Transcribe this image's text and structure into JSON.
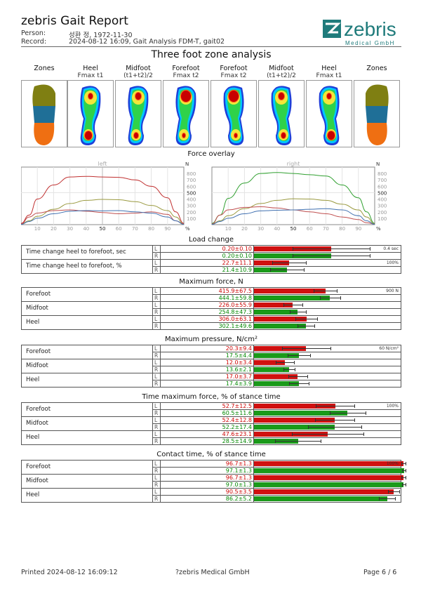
{
  "header": {
    "title": "zebris Gait Report",
    "person_label": "Person:",
    "person_value": "성환 정, 1972-11-30",
    "record_label": "Record:",
    "record_value": "2024-08-12 16:09, Gait Analysis FDM-T, gait02",
    "logo_text": "zebris",
    "logo_sub": "Medical GmbH"
  },
  "zone_analysis": {
    "title": "Three foot zone analysis",
    "columns": [
      {
        "l1": "Zones",
        "l2": ""
      },
      {
        "l1": "Heel",
        "l2": "Fmax t1"
      },
      {
        "l1": "Midfoot",
        "l2": "(t1+t2)/2"
      },
      {
        "l1": "Forefoot",
        "l2": "Fmax t2"
      },
      {
        "l1": "Forefoot",
        "l2": "Fmax t2"
      },
      {
        "l1": "Midfoot",
        "l2": "(t1+t2)/2"
      },
      {
        "l1": "Heel",
        "l2": "Fmax t1"
      },
      {
        "l1": "Zones",
        "l2": ""
      }
    ],
    "zone_colors": {
      "forefoot": "#7f7f12",
      "midfoot": "#1f6f97",
      "heel": "#ef6f12"
    }
  },
  "force_overlay": {
    "title": "Force overlay",
    "left_label": "left",
    "right_label": "right",
    "unit_n": "N",
    "unit_pct": "%",
    "x_ticks": [
      "10",
      "20",
      "30",
      "40",
      "50",
      "60",
      "70",
      "80",
      "90"
    ],
    "y_ticks": [
      "800",
      "700",
      "600",
      "500",
      "400",
      "300",
      "200",
      "100"
    ]
  },
  "chart_data": [
    {
      "type": "line",
      "title": "left",
      "x": [
        0,
        5,
        10,
        20,
        30,
        40,
        50,
        60,
        70,
        80,
        90,
        95,
        100
      ],
      "series": [
        {
          "color": "#c03030",
          "values": [
            20,
            150,
            400,
            620,
            745,
            755,
            745,
            740,
            700,
            600,
            420,
            200,
            20
          ]
        },
        {
          "color": "#9a9a40",
          "values": [
            10,
            60,
            130,
            240,
            330,
            380,
            395,
            390,
            360,
            300,
            220,
            120,
            10
          ]
        },
        {
          "color": "#c05050",
          "values": [
            10,
            120,
            180,
            220,
            230,
            210,
            190,
            170,
            180,
            200,
            160,
            60,
            10
          ]
        },
        {
          "color": "#4070b0",
          "values": [
            5,
            50,
            100,
            170,
            210,
            220,
            215,
            220,
            200,
            180,
            120,
            60,
            5
          ]
        }
      ],
      "ylim": [
        0,
        900
      ]
    },
    {
      "type": "line",
      "title": "right",
      "x": [
        0,
        5,
        10,
        20,
        30,
        40,
        50,
        60,
        70,
        80,
        90,
        95,
        100
      ],
      "series": [
        {
          "color": "#30a030",
          "values": [
            20,
            150,
            410,
            650,
            800,
            815,
            800,
            780,
            760,
            620,
            420,
            200,
            20
          ]
        },
        {
          "color": "#9a9a40",
          "values": [
            10,
            60,
            140,
            250,
            330,
            380,
            405,
            400,
            380,
            320,
            230,
            120,
            10
          ]
        },
        {
          "color": "#c05050",
          "values": [
            10,
            150,
            230,
            270,
            280,
            260,
            230,
            200,
            170,
            120,
            80,
            30,
            10
          ]
        },
        {
          "color": "#4070b0",
          "values": [
            5,
            50,
            100,
            170,
            215,
            225,
            230,
            240,
            250,
            230,
            140,
            60,
            5
          ]
        }
      ],
      "ylim": [
        0,
        900
      ]
    }
  ],
  "tables": [
    {
      "title": "Load change",
      "scale": "0.4 sec",
      "scale2": "100%",
      "rows": [
        {
          "name": "Time change heel to forefoot, sec",
          "L": "0.20±0.10",
          "R": "0.20±0.10",
          "Lv": 0.5,
          "Le": 0.25,
          "Rv": 0.5,
          "Re": 0.25
        },
        {
          "name": "Time change heel to forefoot, %",
          "L": "22.7±11.1",
          "R": "21.4±10.9",
          "Lv": 0.227,
          "Le": 0.111,
          "Rv": 0.214,
          "Re": 0.109
        }
      ]
    },
    {
      "title": "Maximum force, N",
      "scale": "900 N",
      "rows": [
        {
          "name": "Forefoot",
          "L": "415.9±67.5",
          "R": "444.1±59.8",
          "Lv": 0.462,
          "Le": 0.075,
          "Rv": 0.493,
          "Re": 0.066
        },
        {
          "name": "Midfoot",
          "L": "226.0±55.9",
          "R": "254.8±47.3",
          "Lv": 0.251,
          "Le": 0.062,
          "Rv": 0.283,
          "Re": 0.053
        },
        {
          "name": "Heel",
          "L": "306.0±63.1",
          "R": "302.1±49.6",
          "Lv": 0.34,
          "Le": 0.07,
          "Rv": 0.336,
          "Re": 0.055
        }
      ]
    },
    {
      "title": "Maximum pressure, N/cm²",
      "scale": "60 N/cm²",
      "rows": [
        {
          "name": "Forefoot",
          "L": "20.3±9.4",
          "R": "17.5±4.4",
          "Lv": 0.338,
          "Le": 0.157,
          "Rv": 0.292,
          "Re": 0.073
        },
        {
          "name": "Midfoot",
          "L": "12.0±3.4",
          "R": "13.6±2.1",
          "Lv": 0.2,
          "Le": 0.057,
          "Rv": 0.227,
          "Re": 0.035
        },
        {
          "name": "Heel",
          "L": "17.0±3.7",
          "R": "17.4±3.9",
          "Lv": 0.283,
          "Le": 0.062,
          "Rv": 0.29,
          "Re": 0.065
        }
      ]
    },
    {
      "title": "Time maximum force,  % of stance time",
      "scale": "100%",
      "rows": [
        {
          "name": "Forefoot",
          "L": "52.7±12.5",
          "R": "60.5±11.6",
          "Lv": 0.527,
          "Le": 0.125,
          "Rv": 0.605,
          "Re": 0.116
        },
        {
          "name": "Midfoot",
          "L": "52.4±12.8",
          "R": "52.2±17.4",
          "Lv": 0.524,
          "Le": 0.128,
          "Rv": 0.522,
          "Re": 0.174
        },
        {
          "name": "Heel",
          "L": "47.6±23.1",
          "R": "28.5±14.9",
          "Lv": 0.476,
          "Le": 0.231,
          "Rv": 0.285,
          "Re": 0.149
        }
      ]
    },
    {
      "title": "Contact time,  % of stance time",
      "scale": "100%",
      "rows": [
        {
          "name": "Forefoot",
          "L": "96.7±1.3",
          "R": "97.1±1.3",
          "Lv": 0.967,
          "Le": 0.013,
          "Rv": 0.971,
          "Re": 0.013
        },
        {
          "name": "Midfoot",
          "L": "96.7±1.3",
          "R": "97.0±1.3",
          "Lv": 0.967,
          "Le": 0.013,
          "Rv": 0.97,
          "Re": 0.013
        },
        {
          "name": "Heel",
          "L": "90.5±3.5",
          "R": "86.2±5.2",
          "Lv": 0.905,
          "Le": 0.035,
          "Rv": 0.862,
          "Re": 0.052
        }
      ]
    }
  ],
  "footer": {
    "printed": "Printed  2024-08-12 16:09:12",
    "copyright": "?zebris Medical GmbH",
    "page": "Page  6 / 6"
  }
}
